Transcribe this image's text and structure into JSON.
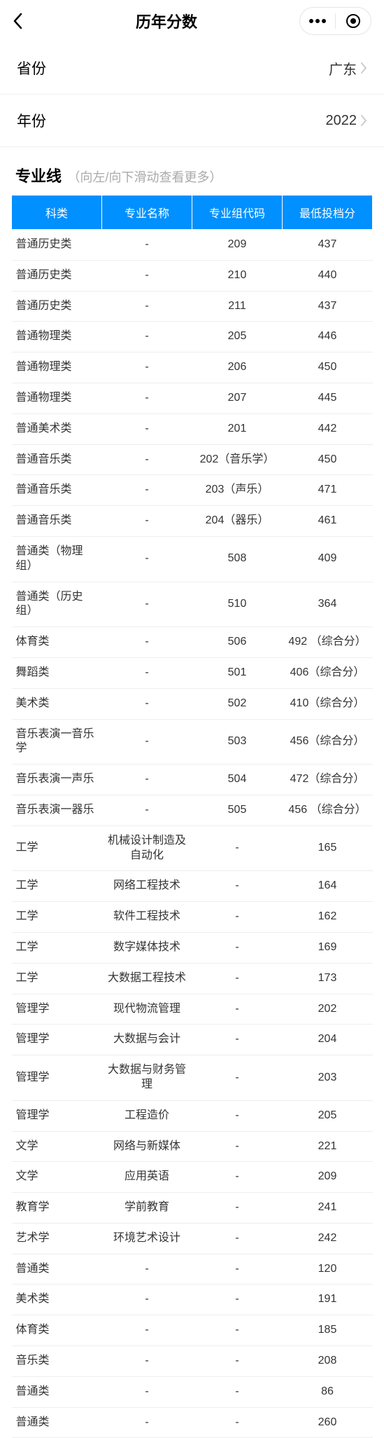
{
  "header": {
    "title": "历年分数"
  },
  "filters": {
    "province": {
      "label": "省份",
      "value": "广东"
    },
    "year": {
      "label": "年份",
      "value": "2022"
    }
  },
  "section": {
    "title": "专业线",
    "hint": "（向左/向下滑动查看更多）"
  },
  "table": {
    "headers": [
      "科类",
      "专业名称",
      "专业组代码",
      "最低投档分"
    ],
    "rows": [
      [
        "普通历史类",
        "-",
        "209",
        "437"
      ],
      [
        "普通历史类",
        "-",
        "210",
        "440"
      ],
      [
        "普通历史类",
        "-",
        "211",
        "437"
      ],
      [
        "普通物理类",
        "-",
        "205",
        "446"
      ],
      [
        "普通物理类",
        "-",
        "206",
        "450"
      ],
      [
        "普通物理类",
        "-",
        "207",
        "445"
      ],
      [
        "普通美术类",
        "-",
        "201",
        "442"
      ],
      [
        "普通音乐类",
        "-",
        "202（音乐学）",
        "450"
      ],
      [
        "普通音乐类",
        "-",
        "203（声乐）",
        "471"
      ],
      [
        "普通音乐类",
        "-",
        "204（器乐）",
        "461"
      ],
      [
        "普通类（物理组）",
        "-",
        "508",
        "409"
      ],
      [
        "普通类（历史组）",
        "-",
        "510",
        "364"
      ],
      [
        "体育类",
        "-",
        "506",
        "492 （综合分）"
      ],
      [
        "舞蹈类",
        "-",
        "501",
        "406（综合分）"
      ],
      [
        "美术类",
        "-",
        "502",
        "410（综合分）"
      ],
      [
        "音乐表演一音乐学",
        "-",
        "503",
        "456（综合分）"
      ],
      [
        "音乐表演一声乐",
        "-",
        "504",
        "472（综合分）"
      ],
      [
        "音乐表演一器乐",
        "-",
        "505",
        "456 （综合分）"
      ],
      [
        "工学",
        "机械设计制造及自动化",
        "-",
        "165"
      ],
      [
        "工学",
        "网络工程技术",
        "-",
        "164"
      ],
      [
        "工学",
        "软件工程技术",
        "-",
        "162"
      ],
      [
        "工学",
        "数字媒体技术",
        "-",
        "169"
      ],
      [
        "工学",
        "大数据工程技术",
        "-",
        "173"
      ],
      [
        "管理学",
        "现代物流管理",
        "-",
        "202"
      ],
      [
        "管理学",
        "大数据与会计",
        "-",
        "204"
      ],
      [
        "管理学",
        "大数据与财务管理",
        "-",
        "203"
      ],
      [
        "管理学",
        "工程造价",
        "-",
        "205"
      ],
      [
        "文学",
        "网络与新媒体",
        "-",
        "221"
      ],
      [
        "文学",
        "应用英语",
        "-",
        "209"
      ],
      [
        "教育学",
        "学前教育",
        "-",
        "241"
      ],
      [
        "艺术学",
        "环境艺术设计",
        "-",
        "242"
      ],
      [
        "普通类",
        "-",
        "-",
        "120"
      ],
      [
        "美术类",
        "-",
        "-",
        "191"
      ],
      [
        "体育类",
        "-",
        "-",
        "185"
      ],
      [
        "音乐类",
        "-",
        "-",
        "208"
      ],
      [
        "普通类",
        "-",
        "-",
        "86"
      ],
      [
        "普通类",
        "-",
        "-",
        "260"
      ]
    ]
  },
  "style": {
    "header_bg": "#0090ff",
    "header_fg": "#ffffff",
    "border_color": "#eeeeee",
    "hint_color": "#aaaaaa"
  }
}
